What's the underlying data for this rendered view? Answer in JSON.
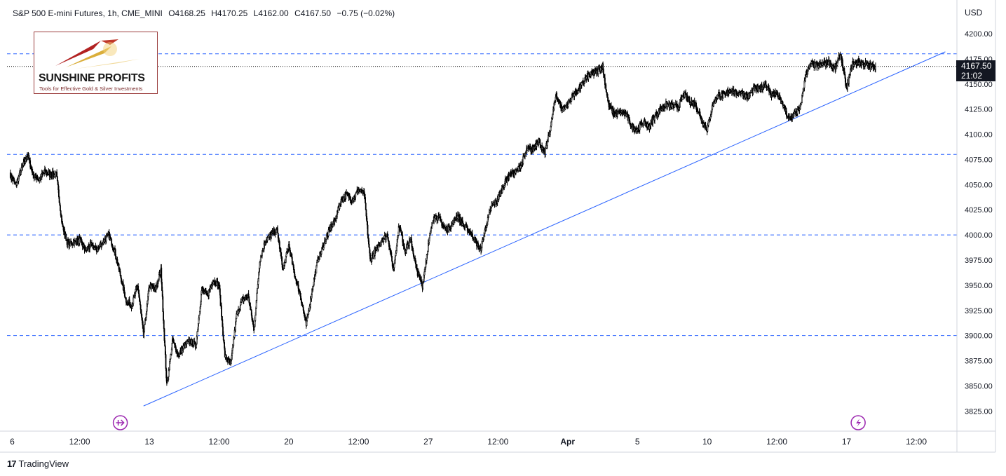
{
  "header": {
    "symbol": "S&P 500 E-mini Futures, 1h, CME_MINI",
    "open": "O4168.25",
    "high": "H4170.25",
    "low": "L4162.00",
    "close": "C4167.50",
    "change": "−0.75 (−0.02%)"
  },
  "currency": "USD",
  "current_price": {
    "price": "4167.50",
    "countdown": "21:02"
  },
  "logo": {
    "name": "SUNSHINE PROFITS",
    "tagline": "Tools for Effective Gold & Silver Investments"
  },
  "footer": {
    "brand": "TradingView"
  },
  "colors": {
    "price_line": "#000000",
    "level_line": "#2962ff",
    "trend_line": "#2962ff",
    "event_icon": "#9c27b0"
  },
  "chart_data": {
    "type": "line",
    "title": "",
    "xlabel": "",
    "ylabel": "",
    "ylim": [
      3805,
      4230
    ],
    "yticks": [
      4200,
      4175,
      4150,
      4125,
      4100,
      4075,
      4050,
      4025,
      4000,
      3975,
      3950,
      3925,
      3900,
      3875,
      3850,
      3825
    ],
    "xticks": [
      {
        "label": "6",
        "bar": 0
      },
      {
        "label": "12:00",
        "bar": 12
      },
      {
        "label": "13",
        "bar": 24
      },
      {
        "label": "12:00",
        "bar": 36
      },
      {
        "label": "20",
        "bar": 48
      },
      {
        "label": "12:00",
        "bar": 60
      },
      {
        "label": "27",
        "bar": 72
      },
      {
        "label": "12:00",
        "bar": 84
      },
      {
        "label": "Apr",
        "bar": 96
      },
      {
        "label": "5",
        "bar": 108
      },
      {
        "label": "10",
        "bar": 120
      },
      {
        "label": "12:00",
        "bar": 132
      },
      {
        "label": "17",
        "bar": 144
      },
      {
        "label": "12:00",
        "bar": 156
      }
    ],
    "x_bar_range": [
      -0.5,
      163
    ],
    "horizontal_levels": [
      4180,
      4080,
      4000,
      3900
    ],
    "last_price": 4167.5,
    "trendline": {
      "from": {
        "bar": 23,
        "price": 3830
      },
      "to": {
        "bar": 161,
        "price": 4182
      }
    },
    "event_markers": [
      {
        "bar": 19,
        "type": "dividend"
      },
      {
        "bar": 146,
        "type": "earnings"
      }
    ],
    "series": [
      {
        "bars_per_tick": 12,
        "anchors": [
          [
            0,
            4060
          ],
          [
            1,
            4050
          ],
          [
            2,
            4065
          ],
          [
            3,
            4080
          ],
          [
            4,
            4060
          ],
          [
            5,
            4055
          ],
          [
            6,
            4063
          ],
          [
            7,
            4060
          ],
          [
            8,
            4060
          ],
          [
            9,
            4010
          ],
          [
            10,
            3990
          ],
          [
            12,
            3995
          ],
          [
            13,
            3985
          ],
          [
            14,
            3990
          ],
          [
            15,
            3985
          ],
          [
            16,
            3993
          ],
          [
            17,
            4000
          ],
          [
            18,
            3985
          ],
          [
            19,
            3960
          ],
          [
            20,
            3935
          ],
          [
            21,
            3930
          ],
          [
            22,
            3950
          ],
          [
            23,
            3900
          ],
          [
            24,
            3950
          ],
          [
            25,
            3945
          ],
          [
            26,
            3965
          ],
          [
            27,
            3850
          ],
          [
            28,
            3895
          ],
          [
            29,
            3880
          ],
          [
            30,
            3890
          ],
          [
            31,
            3895
          ],
          [
            32,
            3890
          ],
          [
            33,
            3945
          ],
          [
            34,
            3940
          ],
          [
            35,
            3955
          ],
          [
            36,
            3950
          ],
          [
            37,
            3880
          ],
          [
            38,
            3870
          ],
          [
            39,
            3920
          ],
          [
            40,
            3935
          ],
          [
            41,
            3940
          ],
          [
            42,
            3905
          ],
          [
            43,
            3975
          ],
          [
            44,
            3995
          ],
          [
            45,
            4000
          ],
          [
            46,
            4005
          ],
          [
            47,
            3965
          ],
          [
            48,
            3990
          ],
          [
            49,
            3960
          ],
          [
            50,
            3940
          ],
          [
            51,
            3910
          ],
          [
            52,
            3945
          ],
          [
            53,
            3975
          ],
          [
            54,
            3990
          ],
          [
            55,
            4005
          ],
          [
            56,
            4015
          ],
          [
            57,
            4035
          ],
          [
            58,
            4040
          ],
          [
            59,
            4035
          ],
          [
            60,
            4045
          ],
          [
            61,
            4040
          ],
          [
            62,
            3975
          ],
          [
            63,
            3985
          ],
          [
            64,
            3995
          ],
          [
            65,
            4000
          ],
          [
            66,
            3965
          ],
          [
            67,
            4010
          ],
          [
            68,
            3985
          ],
          [
            69,
            3995
          ],
          [
            70,
            3965
          ],
          [
            71,
            3950
          ],
          [
            72,
            3990
          ],
          [
            73,
            4020
          ],
          [
            74,
            4015
          ],
          [
            75,
            4005
          ],
          [
            76,
            4010
          ],
          [
            77,
            4020
          ],
          [
            78,
            4010
          ],
          [
            79,
            4005
          ],
          [
            80,
            3995
          ],
          [
            81,
            3985
          ],
          [
            82,
            4010
          ],
          [
            83,
            4030
          ],
          [
            84,
            4035
          ],
          [
            85,
            4050
          ],
          [
            86,
            4060
          ],
          [
            87,
            4062
          ],
          [
            88,
            4070
          ],
          [
            89,
            4085
          ],
          [
            90,
            4085
          ],
          [
            91,
            4095
          ],
          [
            92,
            4080
          ],
          [
            93,
            4105
          ],
          [
            94,
            4140
          ],
          [
            95,
            4125
          ],
          [
            96,
            4130
          ],
          [
            97,
            4140
          ],
          [
            98,
            4145
          ],
          [
            99,
            4155
          ],
          [
            100,
            4160
          ],
          [
            101,
            4162
          ],
          [
            102,
            4168
          ],
          [
            103,
            4130
          ],
          [
            104,
            4120
          ],
          [
            105,
            4122
          ],
          [
            106,
            4120
          ],
          [
            107,
            4108
          ],
          [
            108,
            4105
          ],
          [
            109,
            4112
          ],
          [
            110,
            4108
          ],
          [
            111,
            4118
          ],
          [
            112,
            4125
          ],
          [
            113,
            4130
          ],
          [
            114,
            4128
          ],
          [
            115,
            4127
          ],
          [
            116,
            4140
          ],
          [
            117,
            4133
          ],
          [
            118,
            4130
          ],
          [
            119,
            4115
          ],
          [
            120,
            4105
          ],
          [
            121,
            4130
          ],
          [
            122,
            4140
          ],
          [
            123,
            4138
          ],
          [
            124,
            4145
          ],
          [
            125,
            4140
          ],
          [
            126,
            4142
          ],
          [
            127,
            4137
          ],
          [
            128,
            4145
          ],
          [
            129,
            4145
          ],
          [
            130,
            4150
          ],
          [
            131,
            4140
          ],
          [
            132,
            4140
          ],
          [
            133,
            4130
          ],
          [
            134,
            4115
          ],
          [
            135,
            4120
          ],
          [
            136,
            4125
          ],
          [
            137,
            4160
          ],
          [
            138,
            4170
          ],
          [
            139,
            4168
          ],
          [
            140,
            4170
          ],
          [
            141,
            4172
          ],
          [
            142,
            4165
          ],
          [
            143,
            4180
          ],
          [
            144,
            4145
          ],
          [
            145,
            4170
          ],
          [
            146,
            4172
          ],
          [
            147,
            4170
          ],
          [
            148,
            4168
          ],
          [
            149,
            4167.5
          ]
        ]
      }
    ]
  }
}
